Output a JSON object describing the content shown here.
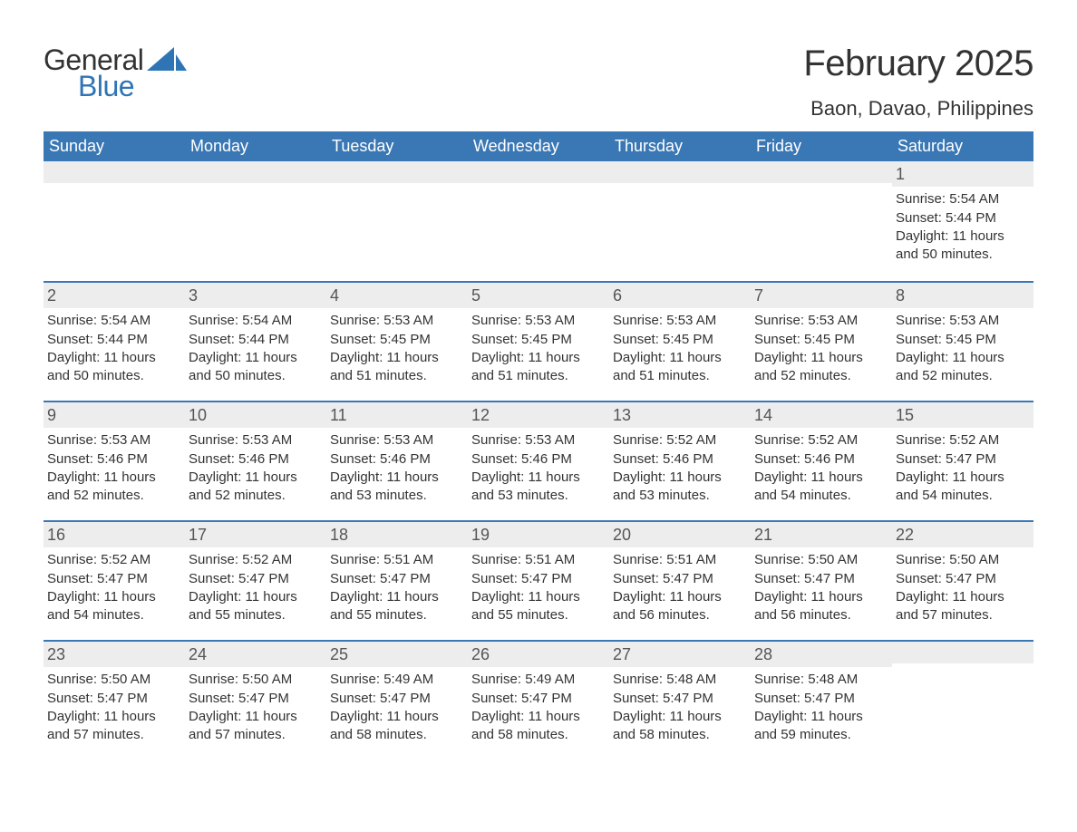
{
  "logo": {
    "word1": "General",
    "word2": "Blue",
    "brand_color": "#2f75b5"
  },
  "title": "February 2025",
  "location": "Baon, Davao, Philippines",
  "colors": {
    "header_bg": "#3a78b5",
    "header_fg": "#ffffff",
    "daynum_bg": "#ededed",
    "text": "#333333",
    "rule": "#3a78b5",
    "page_bg": "#ffffff"
  },
  "fonts": {
    "body_pt": 15,
    "title_pt": 40,
    "location_pt": 22,
    "dow_pt": 18,
    "daynum_pt": 18
  },
  "days_of_week": [
    "Sunday",
    "Monday",
    "Tuesday",
    "Wednesday",
    "Thursday",
    "Friday",
    "Saturday"
  ],
  "labels": {
    "sunrise": "Sunrise: ",
    "sunset": "Sunset: ",
    "daylight": "Daylight: "
  },
  "weeks": [
    [
      null,
      null,
      null,
      null,
      null,
      null,
      {
        "n": "1",
        "sunrise": "5:54 AM",
        "sunset": "5:44 PM",
        "daylight": "11 hours and 50 minutes."
      }
    ],
    [
      {
        "n": "2",
        "sunrise": "5:54 AM",
        "sunset": "5:44 PM",
        "daylight": "11 hours and 50 minutes."
      },
      {
        "n": "3",
        "sunrise": "5:54 AM",
        "sunset": "5:44 PM",
        "daylight": "11 hours and 50 minutes."
      },
      {
        "n": "4",
        "sunrise": "5:53 AM",
        "sunset": "5:45 PM",
        "daylight": "11 hours and 51 minutes."
      },
      {
        "n": "5",
        "sunrise": "5:53 AM",
        "sunset": "5:45 PM",
        "daylight": "11 hours and 51 minutes."
      },
      {
        "n": "6",
        "sunrise": "5:53 AM",
        "sunset": "5:45 PM",
        "daylight": "11 hours and 51 minutes."
      },
      {
        "n": "7",
        "sunrise": "5:53 AM",
        "sunset": "5:45 PM",
        "daylight": "11 hours and 52 minutes."
      },
      {
        "n": "8",
        "sunrise": "5:53 AM",
        "sunset": "5:45 PM",
        "daylight": "11 hours and 52 minutes."
      }
    ],
    [
      {
        "n": "9",
        "sunrise": "5:53 AM",
        "sunset": "5:46 PM",
        "daylight": "11 hours and 52 minutes."
      },
      {
        "n": "10",
        "sunrise": "5:53 AM",
        "sunset": "5:46 PM",
        "daylight": "11 hours and 52 minutes."
      },
      {
        "n": "11",
        "sunrise": "5:53 AM",
        "sunset": "5:46 PM",
        "daylight": "11 hours and 53 minutes."
      },
      {
        "n": "12",
        "sunrise": "5:53 AM",
        "sunset": "5:46 PM",
        "daylight": "11 hours and 53 minutes."
      },
      {
        "n": "13",
        "sunrise": "5:52 AM",
        "sunset": "5:46 PM",
        "daylight": "11 hours and 53 minutes."
      },
      {
        "n": "14",
        "sunrise": "5:52 AM",
        "sunset": "5:46 PM",
        "daylight": "11 hours and 54 minutes."
      },
      {
        "n": "15",
        "sunrise": "5:52 AM",
        "sunset": "5:47 PM",
        "daylight": "11 hours and 54 minutes."
      }
    ],
    [
      {
        "n": "16",
        "sunrise": "5:52 AM",
        "sunset": "5:47 PM",
        "daylight": "11 hours and 54 minutes."
      },
      {
        "n": "17",
        "sunrise": "5:52 AM",
        "sunset": "5:47 PM",
        "daylight": "11 hours and 55 minutes."
      },
      {
        "n": "18",
        "sunrise": "5:51 AM",
        "sunset": "5:47 PM",
        "daylight": "11 hours and 55 minutes."
      },
      {
        "n": "19",
        "sunrise": "5:51 AM",
        "sunset": "5:47 PM",
        "daylight": "11 hours and 55 minutes."
      },
      {
        "n": "20",
        "sunrise": "5:51 AM",
        "sunset": "5:47 PM",
        "daylight": "11 hours and 56 minutes."
      },
      {
        "n": "21",
        "sunrise": "5:50 AM",
        "sunset": "5:47 PM",
        "daylight": "11 hours and 56 minutes."
      },
      {
        "n": "22",
        "sunrise": "5:50 AM",
        "sunset": "5:47 PM",
        "daylight": "11 hours and 57 minutes."
      }
    ],
    [
      {
        "n": "23",
        "sunrise": "5:50 AM",
        "sunset": "5:47 PM",
        "daylight": "11 hours and 57 minutes."
      },
      {
        "n": "24",
        "sunrise": "5:50 AM",
        "sunset": "5:47 PM",
        "daylight": "11 hours and 57 minutes."
      },
      {
        "n": "25",
        "sunrise": "5:49 AM",
        "sunset": "5:47 PM",
        "daylight": "11 hours and 58 minutes."
      },
      {
        "n": "26",
        "sunrise": "5:49 AM",
        "sunset": "5:47 PM",
        "daylight": "11 hours and 58 minutes."
      },
      {
        "n": "27",
        "sunrise": "5:48 AM",
        "sunset": "5:47 PM",
        "daylight": "11 hours and 58 minutes."
      },
      {
        "n": "28",
        "sunrise": "5:48 AM",
        "sunset": "5:47 PM",
        "daylight": "11 hours and 59 minutes."
      },
      null
    ]
  ]
}
